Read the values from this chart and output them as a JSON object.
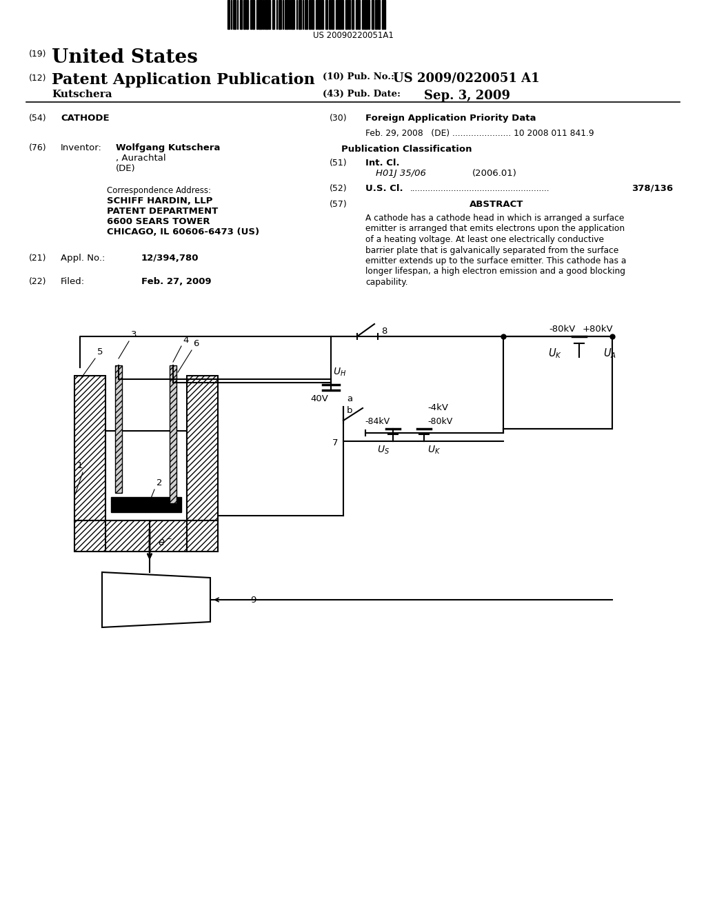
{
  "bg_color": "#ffffff",
  "patent_num": "US 20090220051A1",
  "header_19": "(19)",
  "header_19_text": "United States",
  "header_12": "(12)",
  "header_12_text": "Patent Application Publication",
  "header_10_label": "(10) Pub. No.:",
  "header_10_val": "US 2009/0220051 A1",
  "header_name": "Kutschera",
  "header_43_label": "(43) Pub. Date:",
  "header_43_val": "Sep. 3, 2009",
  "f54_label": "(54)",
  "f54_val": "CATHODE",
  "f76_label": "(76)",
  "f76_key": "Inventor:",
  "f76_name": "Wolfgang Kutschera",
  "f76_loc": ", Aurachtal",
  "f76_country": "(DE)",
  "corr_label": "Correspondence Address:",
  "corr1": "SCHIFF HARDIN, LLP",
  "corr2": "PATENT DEPARTMENT",
  "corr3": "6600 SEARS TOWER",
  "corr4": "CHICAGO, IL 60606-6473 (US)",
  "f21_label": "(21)",
  "f21_key": "Appl. No.:",
  "f21_val": "12/394,780",
  "f22_label": "(22)",
  "f22_key": "Filed:",
  "f22_val": "Feb. 27, 2009",
  "f30_label": "(30)",
  "f30_key": "Foreign Application Priority Data",
  "f30_detail": "Feb. 29, 2008   (DE) ...................... 10 2008 011 841.9",
  "pub_class": "Publication Classification",
  "f51_label": "(51)",
  "f51_key": "Int. Cl.",
  "f51_val": "H01J 35/06",
  "f51_year": "(2006.01)",
  "f52_label": "(52)",
  "f52_key": "U.S. Cl.",
  "f52_dots": "......................................................",
  "f52_val": "378/136",
  "f57_label": "(57)",
  "f57_key": "ABSTRACT",
  "abstract": [
    "A cathode has a cathode head in which is arranged a surface",
    "emitter is arranged that emits electrons upon the application",
    "of a heating voltage. At least one electrically conductive",
    "barrier plate that is galvanically separated from the surface",
    "emitter extends up to the surface emitter. This cathode has a",
    "longer lifespan, a high electron emission and a good blocking",
    "capability."
  ]
}
